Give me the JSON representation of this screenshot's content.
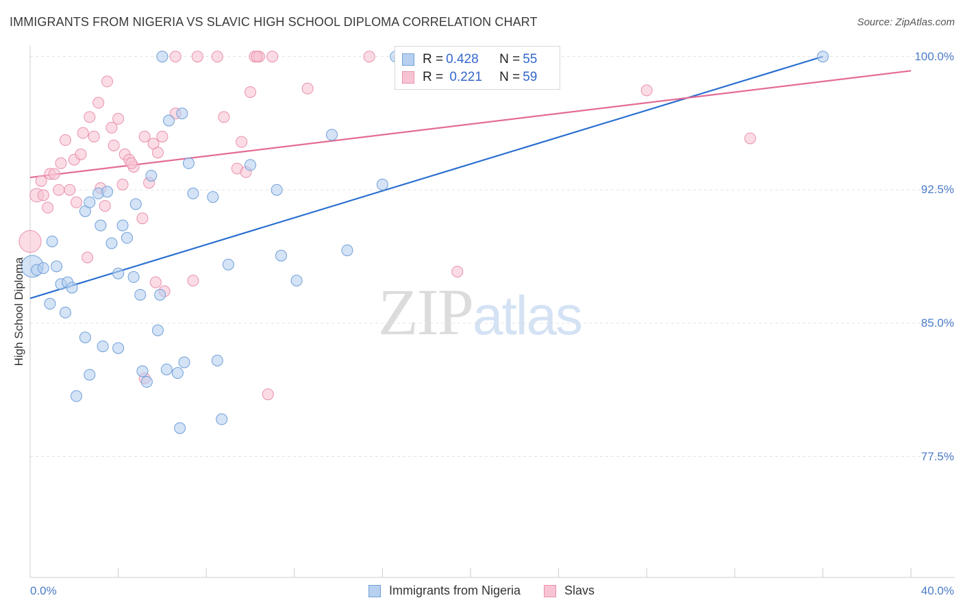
{
  "title": "IMMIGRANTS FROM NIGERIA VS SLAVIC HIGH SCHOOL DIPLOMA CORRELATION CHART",
  "source": "Source: ZipAtlas.com",
  "watermark": {
    "zip": "ZIP",
    "atlas": "atlas"
  },
  "legend_top": [
    {
      "r_label": "R = ",
      "r": "0.428",
      "n_label": "N = ",
      "n": "55"
    },
    {
      "r_label": "R = ",
      "r": " 0.221",
      "n_label": "N = ",
      "n": "59"
    }
  ],
  "legend_bottom": [
    "Immigrants from Nigeria",
    "Slavs"
  ],
  "colors": {
    "blue_fill": "#b8d0f0",
    "blue_stroke": "#6f9fd8",
    "blue_line": "#2a6fcf",
    "pink_fill": "#f8c4d4",
    "pink_stroke": "#e890ac",
    "pink_line": "#e36b93",
    "grid": "#e2e2e2",
    "tick_label": "#4a7cc8"
  },
  "chart_data": {
    "type": "scatter",
    "title": "IMMIGRANTS FROM NIGERIA VS SLAVIC HIGH SCHOOL DIPLOMA CORRELATION CHART",
    "xlabel": "",
    "ylabel": "High School Diploma",
    "xlim": [
      0,
      40
    ],
    "ylim": [
      70.7,
      100.6
    ],
    "x_tick_labels": [
      "0.0%",
      "40.0%"
    ],
    "y_ticks": [
      100.0,
      92.5,
      85.0,
      77.5
    ],
    "y_tick_labels": [
      "100.0%",
      "92.5%",
      "85.0%",
      "77.5%"
    ],
    "grid": true,
    "legend_position": "top-center",
    "series": [
      {
        "name": "Immigrants from Nigeria",
        "r": 0.428,
        "n": 55,
        "trend": [
          [
            0,
            86.4
          ],
          [
            36,
            100.0
          ]
        ],
        "points": [
          [
            0.1,
            88.2,
            16
          ],
          [
            0.3,
            88.0,
            8
          ],
          [
            0.6,
            88.1,
            8
          ],
          [
            1.2,
            88.2,
            8
          ],
          [
            1.0,
            89.6,
            8
          ],
          [
            1.4,
            87.2,
            8
          ],
          [
            1.7,
            87.3,
            8
          ],
          [
            1.9,
            87.0,
            8
          ],
          [
            0.9,
            86.1,
            8
          ],
          [
            1.6,
            85.6,
            8
          ],
          [
            2.5,
            91.3,
            8
          ],
          [
            2.7,
            91.8,
            8
          ],
          [
            3.1,
            92.3,
            8
          ],
          [
            3.5,
            92.4,
            8
          ],
          [
            3.2,
            90.5,
            8
          ],
          [
            3.7,
            89.5,
            8
          ],
          [
            4.2,
            90.5,
            8
          ],
          [
            4.4,
            89.8,
            8
          ],
          [
            4.8,
            91.7,
            8
          ],
          [
            5.5,
            93.3,
            8
          ],
          [
            4.0,
            87.8,
            8
          ],
          [
            4.7,
            87.6,
            8
          ],
          [
            5.0,
            86.6,
            8
          ],
          [
            5.9,
            86.6,
            8
          ],
          [
            5.8,
            84.6,
            8
          ],
          [
            2.5,
            84.2,
            8
          ],
          [
            2.7,
            82.1,
            8
          ],
          [
            3.3,
            83.7,
            8
          ],
          [
            4.0,
            83.6,
            8
          ],
          [
            2.1,
            80.9,
            8
          ],
          [
            5.1,
            82.3,
            8
          ],
          [
            5.3,
            81.7,
            8
          ],
          [
            6.2,
            82.4,
            8
          ],
          [
            6.7,
            82.2,
            8
          ],
          [
            7.0,
            82.8,
            8
          ],
          [
            6.8,
            79.1,
            8
          ],
          [
            8.5,
            82.9,
            8
          ],
          [
            8.7,
            79.6,
            8
          ],
          [
            7.4,
            92.3,
            8
          ],
          [
            8.3,
            92.1,
            8
          ],
          [
            7.2,
            94.0,
            8
          ],
          [
            6.3,
            96.4,
            8
          ],
          [
            6.9,
            96.8,
            8
          ],
          [
            6.0,
            100.0,
            8
          ],
          [
            9.0,
            88.3,
            8
          ],
          [
            10.0,
            93.9,
            8
          ],
          [
            11.2,
            92.5,
            8
          ],
          [
            11.4,
            88.8,
            8
          ],
          [
            12.1,
            87.4,
            8
          ],
          [
            13.7,
            95.6,
            8
          ],
          [
            14.4,
            89.1,
            8
          ],
          [
            16.0,
            92.8,
            8
          ],
          [
            16.6,
            100.0,
            8
          ],
          [
            36.0,
            100.0,
            8
          ],
          [
            16.8,
            99.9,
            8
          ]
        ]
      },
      {
        "name": "Slavs",
        "r": 0.221,
        "n": 59,
        "trend": [
          [
            0,
            93.2
          ],
          [
            40,
            99.2
          ]
        ],
        "points": [
          [
            0.0,
            89.6,
            16
          ],
          [
            0.3,
            92.2,
            10
          ],
          [
            0.5,
            93.0,
            8
          ],
          [
            0.6,
            92.2,
            8
          ],
          [
            0.8,
            91.5,
            8
          ],
          [
            0.9,
            93.4,
            8
          ],
          [
            1.1,
            93.4,
            8
          ],
          [
            1.3,
            92.5,
            8
          ],
          [
            1.4,
            94.0,
            8
          ],
          [
            1.6,
            95.3,
            8
          ],
          [
            1.8,
            92.5,
            8
          ],
          [
            2.0,
            94.2,
            8
          ],
          [
            2.1,
            91.8,
            8
          ],
          [
            2.3,
            94.5,
            8
          ],
          [
            2.4,
            95.7,
            8
          ],
          [
            2.7,
            96.6,
            8
          ],
          [
            2.9,
            95.5,
            8
          ],
          [
            3.1,
            97.4,
            8
          ],
          [
            3.2,
            92.6,
            8
          ],
          [
            3.4,
            91.6,
            8
          ],
          [
            3.5,
            98.6,
            8
          ],
          [
            3.7,
            96.0,
            8
          ],
          [
            3.8,
            95.0,
            8
          ],
          [
            4.0,
            96.5,
            8
          ],
          [
            4.2,
            92.8,
            8
          ],
          [
            4.3,
            94.5,
            8
          ],
          [
            4.5,
            94.2,
            8
          ],
          [
            4.7,
            93.8,
            8
          ],
          [
            4.6,
            94.0,
            8
          ],
          [
            5.2,
            95.5,
            8
          ],
          [
            5.4,
            92.9,
            8
          ],
          [
            5.6,
            95.1,
            8
          ],
          [
            5.8,
            94.6,
            8
          ],
          [
            6.0,
            95.5,
            8
          ],
          [
            5.1,
            90.9,
            8
          ],
          [
            2.6,
            88.7,
            8
          ],
          [
            5.7,
            87.3,
            8
          ],
          [
            6.1,
            86.8,
            8
          ],
          [
            7.4,
            87.4,
            8
          ],
          [
            5.2,
            81.9,
            8
          ],
          [
            6.6,
            96.8,
            8
          ],
          [
            8.8,
            96.6,
            8
          ],
          [
            9.4,
            93.7,
            8
          ],
          [
            9.6,
            95.2,
            8
          ],
          [
            9.8,
            93.5,
            8
          ],
          [
            10.0,
            98.0,
            8
          ],
          [
            10.2,
            100.0,
            8
          ],
          [
            10.4,
            100.0,
            8
          ],
          [
            11.0,
            100.0,
            8
          ],
          [
            12.6,
            98.2,
            8
          ],
          [
            6.6,
            100.0,
            8
          ],
          [
            7.6,
            100.0,
            8
          ],
          [
            8.5,
            100.0,
            8
          ],
          [
            10.3,
            100.0,
            8
          ],
          [
            15.4,
            100.0,
            8
          ],
          [
            19.4,
            87.9,
            8
          ],
          [
            28.0,
            98.1,
            8
          ],
          [
            32.7,
            95.4,
            8
          ],
          [
            10.8,
            81.0,
            8
          ]
        ]
      }
    ]
  }
}
